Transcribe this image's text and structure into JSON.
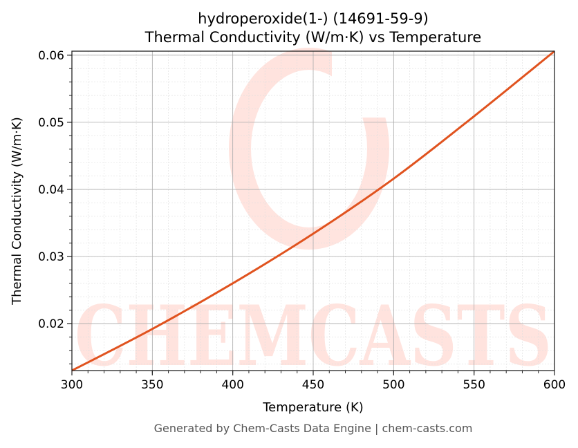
{
  "chart_data": {
    "type": "line",
    "title_line1": "hydroperoxide(1-) (14691-59-9)",
    "title_line2": "Thermal Conductivity (W/m·K) vs Temperature",
    "xlabel": "Temperature (K)",
    "ylabel": "Thermal Conductivity (W/m·K)",
    "xlim": [
      300,
      600
    ],
    "ylim": [
      0.013,
      0.0606
    ],
    "xticks": [
      300,
      350,
      400,
      450,
      500,
      550,
      600
    ],
    "xtick_labels": [
      "300",
      "350",
      "400",
      "450",
      "500",
      "550",
      "600"
    ],
    "yticks": [
      0.02,
      0.03,
      0.04,
      0.05,
      0.06
    ],
    "ytick_labels": [
      "0.02",
      "0.03",
      "0.04",
      "0.05",
      "0.06"
    ],
    "grid": true,
    "series": [
      {
        "color": "#e0531f",
        "x": [
          300,
          350,
          400,
          450,
          500,
          550,
          600
        ],
        "y": [
          0.013,
          0.0192,
          0.026,
          0.0334,
          0.0416,
          0.0509,
          0.0606
        ]
      }
    ],
    "watermark": "CHEMCASTS",
    "footer": "Generated by Chem-Casts Data Engine | chem-casts.com"
  }
}
